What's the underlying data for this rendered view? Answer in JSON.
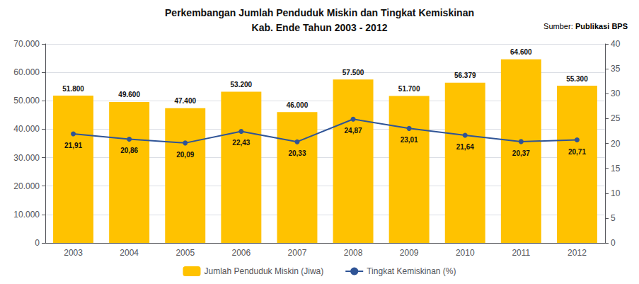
{
  "chart_data": {
    "type": "bar",
    "title": "Perkembangan Jumlah Penduduk Miskin dan Tingkat Kemiskinan",
    "subtitle": "Kab. Ende Tahun 2003 - 2012",
    "annotations": [
      "Sumber:",
      "Publikasi BPS"
    ],
    "categories": [
      "2003",
      "2004",
      "2005",
      "2006",
      "2007",
      "2008",
      "2009",
      "2010",
      "2011",
      "2012"
    ],
    "series": [
      {
        "name": "Jumlah Penduduk Miskin (Jiwa)",
        "type": "bar",
        "color": "#FFC200",
        "values": [
          51800,
          49600,
          47400,
          53200,
          46000,
          57500,
          51700,
          56379,
          64600,
          55300
        ],
        "value_labels": [
          "51.800",
          "49.600",
          "47.400",
          "53.200",
          "46.000",
          "57.500",
          "51.700",
          "56.379",
          "64.600",
          "55.300"
        ]
      },
      {
        "name": "Tingkat Kemiskinan (%)",
        "type": "line",
        "axis": "y2",
        "color": "#2F5496",
        "marker": "circle",
        "values": [
          21.91,
          20.86,
          20.09,
          22.43,
          20.33,
          24.87,
          23.01,
          21.64,
          20.37,
          20.71
        ],
        "value_labels": [
          "21,91",
          "20,86",
          "20,09",
          "22,43",
          "20,33",
          "24,87",
          "23,01",
          "21,64",
          "20,37",
          "20,71"
        ]
      }
    ],
    "ylim": [
      0,
      70000
    ],
    "yticks": [
      0,
      {
        "value": 10000,
        "label": "10.000"
      },
      {
        "value": 20000,
        "label": "20.000"
      },
      {
        "value": 30000,
        "label": "30.000"
      },
      {
        "value": 40000,
        "label": "40.000"
      },
      {
        "value": 50000,
        "label": "50.000"
      },
      {
        "value": 60000,
        "label": "60.000"
      },
      {
        "value": 70000,
        "label": "70.000"
      }
    ],
    "y2lim": [
      0,
      40
    ],
    "y2ticks": [
      0,
      5,
      10,
      15,
      20,
      25,
      30,
      35,
      40
    ],
    "grid": true,
    "legend": "bottom",
    "data_labels": true
  }
}
